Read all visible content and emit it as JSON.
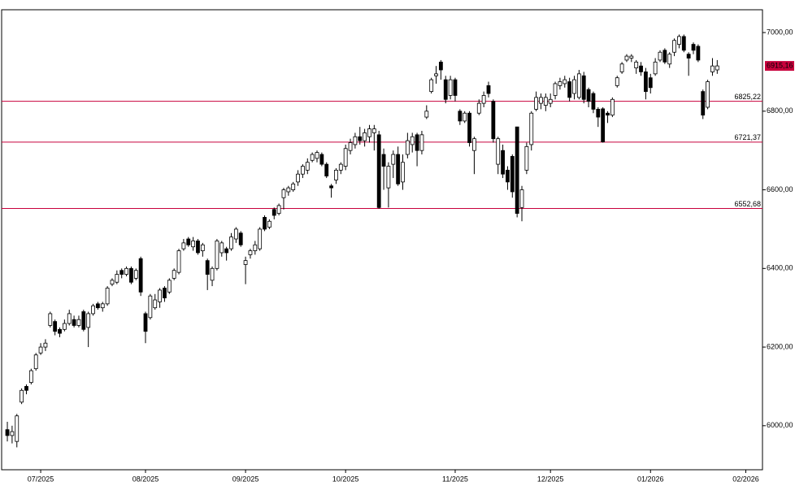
{
  "chart_data": {
    "type": "candlestick",
    "x": [
      -7,
      -6,
      -5,
      -4,
      -3,
      -2,
      -1,
      0,
      1,
      2,
      3,
      4,
      5,
      6,
      7,
      8,
      9,
      10,
      11,
      12,
      13,
      14,
      15,
      16,
      17,
      18,
      19,
      20,
      21,
      22,
      23,
      24,
      25,
      26,
      27,
      28,
      29,
      30,
      31,
      32,
      33,
      34,
      35,
      36,
      37,
      38,
      39,
      40,
      41,
      42,
      43,
      44,
      45,
      46,
      47,
      48,
      49,
      50,
      51,
      52,
      53,
      54,
      55,
      56,
      57,
      58,
      59,
      60,
      61,
      62,
      63,
      64,
      65,
      66,
      67,
      68,
      69,
      70,
      71,
      72,
      73,
      74,
      75,
      76,
      77,
      78,
      79,
      80,
      81,
      82,
      83,
      84,
      85,
      86,
      87,
      88,
      89,
      90,
      91,
      92,
      93,
      94,
      95,
      96,
      97,
      98,
      99,
      100,
      101,
      102,
      103,
      104,
      105,
      106,
      107,
      108,
      109,
      110,
      111,
      112,
      113,
      114,
      115,
      116,
      117,
      118,
      119,
      120,
      121,
      122,
      123,
      124,
      125,
      126,
      127,
      128,
      129,
      130,
      131,
      132,
      133,
      134,
      135,
      136,
      137,
      138,
      139,
      140,
      141,
      142
    ],
    "open": [
      5990,
      5975,
      5960,
      6060,
      6100,
      6110,
      6145,
      6185,
      6200,
      6255,
      6265,
      6245,
      6245,
      6260,
      6270,
      6255,
      6290,
      6250,
      6285,
      6310,
      6300,
      6310,
      6360,
      6365,
      6395,
      6385,
      6400,
      6375,
      6425,
      6285,
      6275,
      6300,
      6315,
      6350,
      6340,
      6375,
      6390,
      6450,
      6475,
      6455,
      6470,
      6445,
      6420,
      6370,
      6400,
      6440,
      6450,
      6450,
      6475,
      6490,
      6410,
      6435,
      6445,
      6450,
      6530,
      6505,
      6550,
      6540,
      6580,
      6595,
      6600,
      6620,
      6640,
      6650,
      6675,
      6680,
      6690,
      6665,
      6610,
      6625,
      6650,
      6660,
      6700,
      6715,
      6735,
      6725,
      6735,
      6745,
      6740,
      6690,
      6605,
      6665,
      6690,
      6620,
      6690,
      6715,
      6740,
      6700,
      6785,
      6850,
      6890,
      6925,
      6880,
      6840,
      6880,
      6800,
      6775,
      6795,
      6700,
      6795,
      6820,
      6865,
      6825,
      6665,
      6700,
      6650,
      6685,
      6760,
      6555,
      6650,
      6715,
      6805,
      6820,
      6815,
      6820,
      6840,
      6865,
      6870,
      6875,
      6845,
      6835,
      6890,
      6855,
      6845,
      6805,
      6806,
      6795,
      6790,
      6865,
      6900,
      6930,
      6935,
      6910,
      6915,
      6900,
      6885,
      6895,
      6930,
      6955,
      6920,
      6950,
      6970,
      6990,
      6945,
      6970,
      6965,
      6850,
      6810,
      6900,
      6905
    ],
    "high": [
      6010,
      6000,
      6030,
      6095,
      6105,
      6145,
      6185,
      6210,
      6220,
      6290,
      6270,
      6250,
      6270,
      6295,
      6280,
      6280,
      6295,
      6290,
      6310,
      6315,
      6315,
      6355,
      6375,
      6395,
      6400,
      6405,
      6405,
      6400,
      6430,
      6290,
      6335,
      6335,
      6350,
      6355,
      6375,
      6400,
      6450,
      6475,
      6480,
      6480,
      6475,
      6465,
      6425,
      6405,
      6475,
      6470,
      6455,
      6490,
      6505,
      6495,
      6430,
      6450,
      6470,
      6505,
      6535,
      6525,
      6555,
      6565,
      6605,
      6610,
      6620,
      6650,
      6665,
      6680,
      6695,
      6700,
      6695,
      6670,
      6615,
      6655,
      6670,
      6715,
      6730,
      6745,
      6760,
      6755,
      6765,
      6765,
      6750,
      6705,
      6670,
      6700,
      6710,
      6690,
      6745,
      6745,
      6745,
      6750,
      6815,
      6885,
      6915,
      6930,
      6890,
      6890,
      6885,
      6805,
      6800,
      6800,
      6735,
      6830,
      6850,
      6875,
      6830,
      6735,
      6715,
      6660,
      6690,
      6760,
      6610,
      6720,
      6800,
      6850,
      6845,
      6845,
      6845,
      6875,
      6885,
      6890,
      6885,
      6890,
      6905,
      6900,
      6860,
      6850,
      6810,
      6810,
      6800,
      6835,
      6890,
      6925,
      6945,
      6945,
      6930,
      6925,
      6910,
      6895,
      6935,
      6955,
      6960,
      6950,
      6985,
      6995,
      6995,
      6950,
      6975,
      6970,
      6855,
      6880,
      6935,
      6930
    ],
    "low": [
      5960,
      5955,
      5945,
      6055,
      6080,
      6105,
      6140,
      6180,
      6190,
      6250,
      6230,
      6225,
      6240,
      6255,
      6250,
      6250,
      6240,
      6200,
      6280,
      6295,
      6290,
      6305,
      6355,
      6360,
      6375,
      6380,
      6360,
      6370,
      6330,
      6210,
      6270,
      6295,
      6300,
      6315,
      6335,
      6370,
      6385,
      6445,
      6455,
      6445,
      6435,
      6430,
      6345,
      6355,
      6395,
      6430,
      6420,
      6445,
      6465,
      6455,
      6360,
      6425,
      6435,
      6445,
      6495,
      6500,
      6525,
      6535,
      6550,
      6585,
      6595,
      6610,
      6630,
      6640,
      6670,
      6670,
      6660,
      6630,
      6580,
      6615,
      6640,
      6650,
      6690,
      6705,
      6715,
      6710,
      6720,
      6700,
      6552,
      6600,
      6555,
      6630,
      6610,
      6600,
      6680,
      6695,
      6660,
      6690,
      6780,
      6845,
      6870,
      6880,
      6820,
      6830,
      6825,
      6765,
      6770,
      6710,
      6640,
      6790,
      6810,
      6835,
      6720,
      6640,
      6630,
      6600,
      6580,
      6530,
      6520,
      6640,
      6700,
      6800,
      6805,
      6800,
      6810,
      6830,
      6855,
      6860,
      6825,
      6830,
      6830,
      6820,
      6810,
      6795,
      6760,
      6720,
      6770,
      6785,
      6860,
      6895,
      6925,
      6925,
      6895,
      6890,
      6830,
      6845,
      6890,
      6925,
      6920,
      6910,
      6940,
      6960,
      6950,
      6890,
      6945,
      6925,
      6780,
      6805,
      6890,
      6895
    ],
    "close": [
      5975,
      5985,
      6025,
      6090,
      6090,
      6140,
      6180,
      6200,
      6210,
      6285,
      6240,
      6235,
      6260,
      6285,
      6255,
      6270,
      6245,
      6285,
      6305,
      6300,
      6310,
      6350,
      6370,
      6385,
      6385,
      6400,
      6365,
      6395,
      6340,
      6240,
      6330,
      6320,
      6345,
      6325,
      6370,
      6395,
      6445,
      6465,
      6460,
      6470,
      6440,
      6460,
      6385,
      6400,
      6470,
      6465,
      6440,
      6480,
      6500,
      6460,
      6420,
      6445,
      6460,
      6500,
      6500,
      6520,
      6535,
      6560,
      6600,
      6605,
      6615,
      6640,
      6660,
      6670,
      6690,
      6695,
      6665,
      6635,
      6605,
      6650,
      6665,
      6705,
      6720,
      6735,
      6725,
      6745,
      6755,
      6755,
      6555,
      6660,
      6660,
      6690,
      6615,
      6670,
      6725,
      6735,
      6700,
      6740,
      6800,
      6880,
      6895,
      6905,
      6830,
      6880,
      6840,
      6775,
      6795,
      6720,
      6730,
      6820,
      6840,
      6845,
      6730,
      6730,
      6640,
      6620,
      6595,
      6540,
      6600,
      6710,
      6795,
      6835,
      6835,
      6835,
      6830,
      6870,
      6875,
      6880,
      6835,
      6880,
      6895,
      6830,
      6825,
      6805,
      6785,
      6722,
      6790,
      6830,
      6885,
      6920,
      6940,
      6940,
      6925,
      6900,
      6850,
      6860,
      6925,
      6950,
      6925,
      6945,
      6980,
      6990,
      6955,
      6935,
      6955,
      6930,
      6790,
      6875,
      6915,
      6915.16
    ],
    "up_color": "#ffffff",
    "down_color": "#000000",
    "xlim": [
      -8.2,
      151.5
    ],
    "ylim": [
      5888,
      7058
    ],
    "xticks": [
      {
        "value": 0,
        "label": "07/2025"
      },
      {
        "value": 22,
        "label": "08/2025"
      },
      {
        "value": 43,
        "label": "09/2025"
      },
      {
        "value": 64,
        "label": "10/2025"
      },
      {
        "value": 87,
        "label": "11/2025"
      },
      {
        "value": 107,
        "label": "12/2025"
      },
      {
        "value": 128,
        "label": "01/2026"
      },
      {
        "value": 148,
        "label": "02/2026"
      }
    ],
    "yticks": [
      {
        "value": 6000,
        "label": "6000,00"
      },
      {
        "value": 6200,
        "label": "6200,00"
      },
      {
        "value": 6400,
        "label": "6400,00"
      },
      {
        "value": 6600,
        "label": "6600,00"
      },
      {
        "value": 6800,
        "label": "6800,00"
      },
      {
        "value": 7000,
        "label": "7000,00"
      }
    ],
    "levels": [
      {
        "value": 6825.22,
        "label": "6825,22"
      },
      {
        "value": 6721.37,
        "label": "6721,37"
      },
      {
        "value": 6552.68,
        "label": "6552,68"
      }
    ],
    "level_color": "#c8003c",
    "last_price": {
      "value": 6915.16,
      "label": "6915,16"
    }
  }
}
